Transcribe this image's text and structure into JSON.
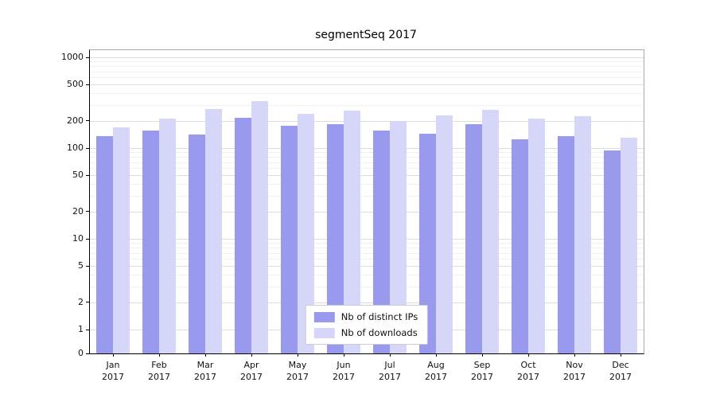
{
  "chart_data": {
    "type": "bar",
    "title": "segmentSeq 2017",
    "categories": [
      "Jan",
      "Feb",
      "Mar",
      "Apr",
      "May",
      "Jun",
      "Jul",
      "Aug",
      "Sep",
      "Oct",
      "Nov",
      "Dec"
    ],
    "category_year": "2017",
    "series": [
      {
        "name": "Nb of distinct IPs",
        "color": "#9999ed",
        "values": [
          135,
          155,
          140,
          215,
          175,
          185,
          155,
          145,
          185,
          125,
          135,
          95
        ]
      },
      {
        "name": "Nb of downloads",
        "color": "#d6d6f8",
        "values": [
          170,
          210,
          270,
          330,
          240,
          260,
          200,
          230,
          265,
          210,
          225,
          130
        ]
      }
    ],
    "yscale": "log",
    "yticks": [
      0,
      1,
      2,
      5,
      10,
      20,
      50,
      100,
      200,
      500,
      1000
    ],
    "ylim": [
      0,
      1200
    ],
    "xlabel": "",
    "ylabel": "",
    "grid": true,
    "legend_position": "bottom-center"
  }
}
